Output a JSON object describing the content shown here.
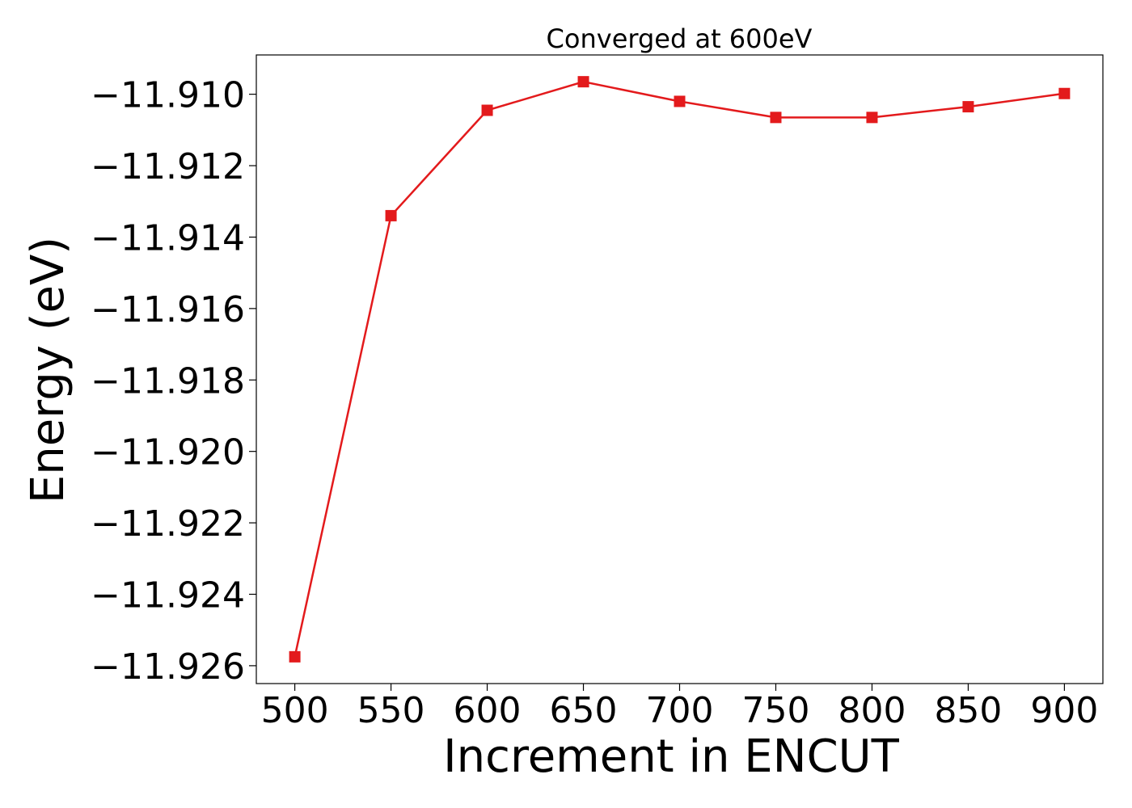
{
  "chart_data": {
    "type": "line",
    "title": "Converged at 600eV",
    "xlabel": "Increment in ENCUT",
    "ylabel": "Energy (eV)",
    "x": [
      500,
      550,
      600,
      650,
      700,
      750,
      800,
      850,
      900
    ],
    "series": [
      {
        "values": [
          -11.92575,
          -11.9134,
          -11.91045,
          -11.90965,
          -11.9102,
          -11.91065,
          -11.91065,
          -11.91035,
          -11.90998
        ],
        "color": "#e31a1c",
        "marker": "square"
      }
    ],
    "xticks": [
      500,
      550,
      600,
      650,
      700,
      750,
      800,
      850,
      900
    ],
    "xtick_labels": [
      "500",
      "550",
      "600",
      "650",
      "700",
      "750",
      "800",
      "850",
      "900"
    ],
    "yticks": [
      -11.91,
      -11.912,
      -11.914,
      -11.916,
      -11.918,
      -11.92,
      -11.922,
      -11.924,
      -11.926
    ],
    "ytick_labels": [
      "−11.910",
      "−11.912",
      "−11.914",
      "−11.916",
      "−11.918",
      "−11.920",
      "−11.922",
      "−11.924",
      "−11.926"
    ],
    "xlim": [
      480,
      920
    ],
    "ylim": [
      -11.9265,
      -11.9089
    ],
    "grid": false,
    "legend": "none"
  }
}
